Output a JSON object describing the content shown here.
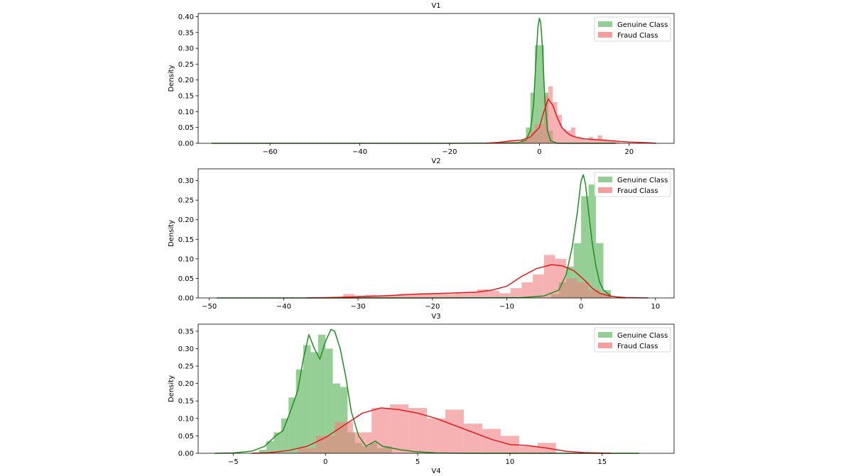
{
  "figure": {
    "bottom_label": "V4"
  },
  "colors": {
    "genuine": "#2ca02c",
    "genuine_line": "#228b22",
    "fraud": "#f08080",
    "fraud_line": "#e31a1c",
    "axis": "#000000"
  },
  "chart_data": [
    {
      "type": "bar",
      "title": "V1",
      "xlabel": "",
      "ylabel": "Density",
      "xlim": [
        -76,
        30
      ],
      "ylim": [
        0,
        0.41
      ],
      "xticks": [
        -60,
        -40,
        -20,
        0,
        20
      ],
      "xtick_labels": [
        "−60",
        "−40",
        "−20",
        "0",
        "20"
      ],
      "yticks": [
        0,
        0.05,
        0.1,
        0.15,
        0.2,
        0.25,
        0.3,
        0.35,
        0.4
      ],
      "ytick_labels": [
        "0.00",
        "0.05",
        "0.10",
        "0.15",
        "0.20",
        "0.25",
        "0.30",
        "0.35",
        "0.40"
      ],
      "legend": {
        "position": "top-right",
        "entries": [
          "Genuine Class",
          "Fraud Class"
        ]
      },
      "series": [
        {
          "name": "Genuine Class",
          "hist_edges": [
            -4,
            -3,
            -2,
            -1,
            0,
            1,
            2,
            3
          ],
          "hist_values": [
            0.01,
            0.05,
            0.16,
            0.31,
            0.31,
            0.16,
            0.04
          ],
          "kde": [
            [
              -73,
              0
            ],
            [
              -50,
              0
            ],
            [
              -20,
              0
            ],
            [
              -5,
              0.001
            ],
            [
              -3,
              0.01
            ],
            [
              -2,
              0.04
            ],
            [
              -1.3,
              0.12
            ],
            [
              -0.7,
              0.28
            ],
            [
              -0.3,
              0.37
            ],
            [
              0,
              0.395
            ],
            [
              0.3,
              0.38
            ],
            [
              0.7,
              0.3
            ],
            [
              1.2,
              0.14
            ],
            [
              1.8,
              0.04
            ],
            [
              2.5,
              0.008
            ],
            [
              4,
              0
            ],
            [
              10,
              0
            ],
            [
              17,
              0
            ]
          ]
        },
        {
          "name": "Fraud Class",
          "hist_edges": [
            -10,
            -9,
            -8,
            -7,
            -6,
            -5,
            -4,
            -3,
            -2,
            -1,
            0,
            1,
            2,
            3,
            4,
            5,
            6,
            7,
            8,
            9,
            10,
            11,
            12,
            13,
            14,
            15,
            16,
            17,
            18
          ],
          "hist_values": [
            0.002,
            0.003,
            0.005,
            0.01,
            0.008,
            0.005,
            0.01,
            0.02,
            0.04,
            0.06,
            0.06,
            0.15,
            0.18,
            0.13,
            0.09,
            0.045,
            0.04,
            0.05,
            0.02,
            0.015,
            0.01,
            0.02,
            0.012,
            0.025,
            0.012,
            0.01,
            0.008,
            0.004
          ],
          "kde": [
            [
              -12,
              0
            ],
            [
              -9,
              0.003
            ],
            [
              -6,
              0.008
            ],
            [
              -4,
              0.01
            ],
            [
              -2,
              0.02
            ],
            [
              0,
              0.05
            ],
            [
              1,
              0.1
            ],
            [
              2,
              0.14
            ],
            [
              3,
              0.12
            ],
            [
              4,
              0.08
            ],
            [
              5,
              0.05
            ],
            [
              6,
              0.035
            ],
            [
              7,
              0.025
            ],
            [
              8,
              0.02
            ],
            [
              9,
              0.017
            ],
            [
              10,
              0.014
            ],
            [
              12,
              0.012
            ],
            [
              14,
              0.01
            ],
            [
              16,
              0.008
            ],
            [
              18,
              0.006
            ],
            [
              20,
              0.004
            ],
            [
              24,
              0.002
            ],
            [
              26,
              0
            ]
          ]
        }
      ]
    },
    {
      "type": "bar",
      "title": "V2",
      "xlabel": "",
      "ylabel": "Density",
      "xlim": [
        -51.5,
        12.5
      ],
      "ylim": [
        0,
        0.33
      ],
      "xticks": [
        -50,
        -40,
        -30,
        -20,
        -10,
        0,
        10
      ],
      "xtick_labels": [
        "−50",
        "−40",
        "−30",
        "−20",
        "−10",
        "0",
        "10"
      ],
      "yticks": [
        0,
        0.05,
        0.1,
        0.15,
        0.2,
        0.25,
        0.3
      ],
      "ytick_labels": [
        "0.00",
        "0.05",
        "0.10",
        "0.15",
        "0.20",
        "0.25",
        "0.30"
      ],
      "legend": {
        "position": "top-right",
        "entries": [
          "Genuine Class",
          "Fraud Class"
        ]
      },
      "series": [
        {
          "name": "Genuine Class",
          "hist_edges": [
            -4,
            -3,
            -2,
            -1,
            0,
            1,
            2,
            3,
            4
          ],
          "hist_values": [
            0.01,
            0.04,
            0.08,
            0.14,
            0.26,
            0.29,
            0.14,
            0.02
          ],
          "kde": [
            [
              -49,
              0
            ],
            [
              -20,
              0
            ],
            [
              -8,
              0.001
            ],
            [
              -5,
              0.005
            ],
            [
              -3,
              0.02
            ],
            [
              -2,
              0.06
            ],
            [
              -1.2,
              0.13
            ],
            [
              -0.5,
              0.22
            ],
            [
              0,
              0.3
            ],
            [
              0.3,
              0.315
            ],
            [
              0.6,
              0.29
            ],
            [
              1,
              0.22
            ],
            [
              1.5,
              0.14
            ],
            [
              2,
              0.08
            ],
            [
              2.5,
              0.04
            ],
            [
              3,
              0.02
            ],
            [
              4,
              0.005
            ],
            [
              5,
              0.001
            ],
            [
              6,
              0
            ]
          ]
        },
        {
          "name": "Fraud Class",
          "hist_edges": [
            -32,
            -30.5,
            -29,
            -27.5,
            -26,
            -24.5,
            -23,
            -21.5,
            -20,
            -18.5,
            -17,
            -15.5,
            -14,
            -12.5,
            -11,
            -9.5,
            -8,
            -6.5,
            -5,
            -3.5,
            -2,
            -0.5,
            1,
            2.5,
            4
          ],
          "hist_values": [
            0.01,
            0.006,
            0.008,
            0.006,
            0.008,
            0.01,
            0.01,
            0.012,
            0.012,
            0.01,
            0.012,
            0.015,
            0.022,
            0.018,
            0.012,
            0.025,
            0.04,
            0.06,
            0.11,
            0.1,
            0.05,
            0.04,
            0.02,
            0.012
          ],
          "kde": [
            [
              -37,
              0
            ],
            [
              -34,
              0.001
            ],
            [
              -30,
              0.003
            ],
            [
              -26,
              0.006
            ],
            [
              -22,
              0.01
            ],
            [
              -18,
              0.012
            ],
            [
              -14,
              0.015
            ],
            [
              -12,
              0.02
            ],
            [
              -10,
              0.03
            ],
            [
              -8,
              0.055
            ],
            [
              -6,
              0.075
            ],
            [
              -4,
              0.085
            ],
            [
              -2.5,
              0.082
            ],
            [
              -1,
              0.07
            ],
            [
              0.5,
              0.045
            ],
            [
              1.5,
              0.025
            ],
            [
              2.5,
              0.012
            ],
            [
              4,
              0.004
            ],
            [
              6,
              0.001
            ],
            [
              9,
              0
            ]
          ]
        }
      ]
    },
    {
      "type": "bar",
      "title": "V3",
      "xlabel": "V4",
      "ylabel": "Density",
      "xlim": [
        -6.9,
        18.9
      ],
      "ylim": [
        0,
        0.37
      ],
      "xticks": [
        -5,
        0,
        5,
        10,
        15
      ],
      "xtick_labels": [
        "−5",
        "0",
        "5",
        "10",
        "15"
      ],
      "yticks": [
        0,
        0.05,
        0.1,
        0.15,
        0.2,
        0.25,
        0.3,
        0.35
      ],
      "ytick_labels": [
        "0.00",
        "0.05",
        "0.10",
        "0.15",
        "0.20",
        "0.25",
        "0.30",
        "0.35"
      ],
      "legend": {
        "position": "top-right",
        "entries": [
          "Genuine Class",
          "Fraud Class"
        ]
      },
      "series": [
        {
          "name": "Genuine Class",
          "hist_edges": [
            -3.6,
            -3.2,
            -2.8,
            -2.4,
            -2.0,
            -1.6,
            -1.2,
            -0.8,
            -0.4,
            0,
            0.4,
            0.8,
            1.2,
            1.6,
            2.0,
            2.4,
            2.8,
            3.2,
            3.6
          ],
          "hist_values": [
            0.01,
            0.035,
            0.06,
            0.1,
            0.16,
            0.24,
            0.31,
            0.29,
            0.34,
            0.3,
            0.2,
            0.19,
            0.06,
            0.03,
            0.02,
            0.03,
            0.015,
            0.02
          ],
          "kde": [
            [
              -6,
              0
            ],
            [
              -5,
              0.001
            ],
            [
              -4,
              0.006
            ],
            [
              -3.3,
              0.02
            ],
            [
              -2.7,
              0.05
            ],
            [
              -2.3,
              0.065
            ],
            [
              -1.9,
              0.12
            ],
            [
              -1.5,
              0.18
            ],
            [
              -1.2,
              0.27
            ],
            [
              -0.9,
              0.34
            ],
            [
              -0.6,
              0.3
            ],
            [
              -0.3,
              0.27
            ],
            [
              0,
              0.32
            ],
            [
              0.3,
              0.355
            ],
            [
              0.5,
              0.35
            ],
            [
              0.8,
              0.3
            ],
            [
              1.1,
              0.22
            ],
            [
              1.4,
              0.12
            ],
            [
              1.8,
              0.05
            ],
            [
              2.2,
              0.02
            ],
            [
              2.7,
              0.035
            ],
            [
              3.1,
              0.02
            ],
            [
              3.6,
              0.015
            ],
            [
              4.1,
              0.01
            ],
            [
              4.8,
              0.005
            ],
            [
              6,
              0.001
            ],
            [
              8,
              0
            ],
            [
              17,
              0
            ]
          ]
        },
        {
          "name": "Fraud Class",
          "hist_edges": [
            -1.5,
            -0.5,
            0.5,
            1.5,
            2.5,
            3.5,
            4.5,
            5.5,
            6.5,
            7.5,
            8.5,
            9.5,
            10.5,
            11.5,
            12.5
          ],
          "hist_values": [
            0.015,
            0.05,
            0.09,
            0.06,
            0.13,
            0.14,
            0.13,
            0.1,
            0.125,
            0.085,
            0.07,
            0.05,
            0.02,
            0.03
          ],
          "kde": [
            [
              -4,
              0
            ],
            [
              -3,
              0.002
            ],
            [
              -2,
              0.008
            ],
            [
              -1,
              0.02
            ],
            [
              0,
              0.045
            ],
            [
              1,
              0.08
            ],
            [
              2,
              0.115
            ],
            [
              3,
              0.13
            ],
            [
              4,
              0.125
            ],
            [
              5,
              0.115
            ],
            [
              6,
              0.1
            ],
            [
              7,
              0.08
            ],
            [
              8,
              0.06
            ],
            [
              9,
              0.04
            ],
            [
              10,
              0.025
            ],
            [
              11,
              0.022
            ],
            [
              12,
              0.015
            ],
            [
              13,
              0.006
            ],
            [
              14,
              0.002
            ],
            [
              15.5,
              0
            ]
          ]
        }
      ]
    }
  ]
}
